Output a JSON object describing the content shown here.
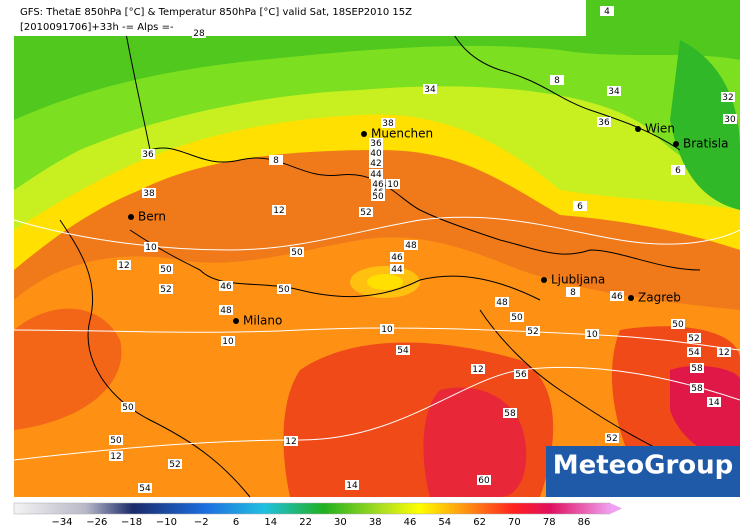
{
  "header": {
    "line1": "GFS: ThetaE 850hPa [°C] & Temperatur 850hPa [°C] valid Sat, 18SEP2010 15Z",
    "line2": "[2010091706]+33h  -= Alps =-"
  },
  "cities": [
    {
      "name": "Muenchen"
    },
    {
      "name": "Wien"
    },
    {
      "name": "Bratisla"
    },
    {
      "name": "Bern"
    },
    {
      "name": "Ljubljana"
    },
    {
      "name": "Zagreb"
    },
    {
      "name": "Milano"
    }
  ],
  "contour_labels": [
    "4",
    "28",
    "34",
    "34",
    "36",
    "32",
    "30",
    "8",
    "36",
    "38",
    "38",
    "8",
    "36",
    "40",
    "42",
    "44",
    "46",
    "46",
    "50",
    "10",
    "12",
    "52",
    "50",
    "10",
    "12",
    "50",
    "52",
    "46",
    "48",
    "50",
    "48",
    "46",
    "44",
    "6",
    "6",
    "8",
    "46",
    "48",
    "50",
    "52",
    "10",
    "10",
    "10",
    "50",
    "52",
    "54",
    "12",
    "54",
    "56",
    "58",
    "58",
    "14",
    "12",
    "50",
    "58",
    "50",
    "12",
    "52",
    "12",
    "52",
    "60",
    "14",
    "54"
  ],
  "colorbar": {
    "labels": [
      "−34",
      "−26",
      "−18",
      "−10",
      "−2",
      "6",
      "14",
      "22",
      "30",
      "38",
      "46",
      "54",
      "62",
      "70",
      "78",
      "86"
    ]
  },
  "logo": "MeteoGroup"
}
